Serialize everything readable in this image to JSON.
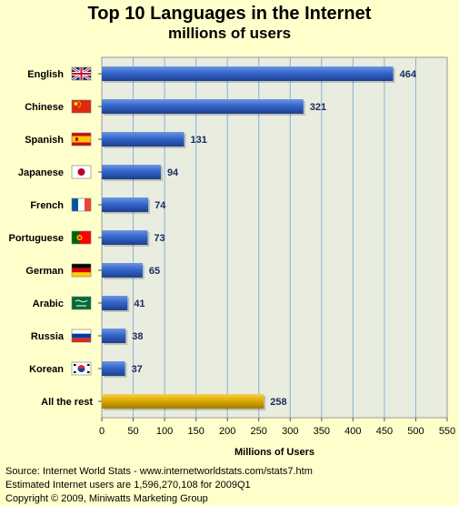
{
  "chart_data": {
    "type": "bar",
    "orientation": "horizontal",
    "title": "Top 10 Languages in the Internet",
    "subtitle": "millions of users",
    "xlabel": "Millions of Users",
    "xlim": [
      0,
      550
    ],
    "xticks": [
      0,
      50,
      100,
      150,
      200,
      250,
      300,
      350,
      400,
      450,
      500,
      550
    ],
    "grid": true,
    "categories": [
      "English",
      "Chinese",
      "Spanish",
      "Japanese",
      "French",
      "Portuguese",
      "German",
      "Arabic",
      "Russia",
      "Korean",
      "All the rest"
    ],
    "values": [
      464,
      321,
      131,
      94,
      74,
      73,
      65,
      41,
      38,
      37,
      258
    ],
    "flags": [
      "uk-flag-icon",
      "china-flag-icon",
      "spain-flag-icon",
      "japan-flag-icon",
      "france-flag-icon",
      "portugal-flag-icon",
      "germany-flag-icon",
      "saudi-arabia-flag-icon",
      "russia-flag-icon",
      "korea-flag-icon",
      ""
    ],
    "colors": {
      "bar": "#3366cc",
      "highlight_bar": "#ddaa00",
      "plot_background": "#e8ede0",
      "page_background": "#ffffcc"
    }
  },
  "footer": {
    "source": "Source: Internet World Stats - www.internetworldstats.com/stats7.htm",
    "estimate": "Estimated Internet users are 1,596,270,108 for 2009Q1",
    "copyright": "Copyright © 2009, Miniwatts Marketing Group"
  }
}
